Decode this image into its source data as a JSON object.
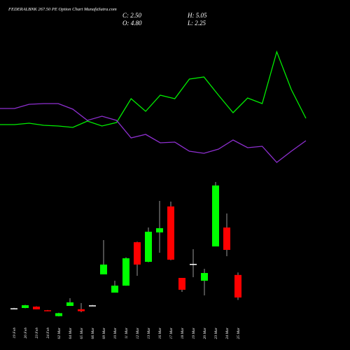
{
  "chart_data": [
    {
      "type": "candlestick",
      "title": "FEDERALBNK 267.50 PE Option Chart MunafaSutra.com",
      "stats": [
        "C: 2.50",
        "H: 5.05",
        "O: 4.80",
        "L: 2.25"
      ],
      "categories": [
        "19 Feb",
        "20 Feb",
        "23 Feb",
        "24 Feb",
        "02 Mar",
        "04 Mar",
        "05 Mar",
        "06 Mar",
        "09 Mar",
        "10 Mar",
        "11 Mar",
        "12 Mar",
        "13 Mar",
        "16 Mar",
        "17 Mar",
        "18 Mar",
        "19 Mar",
        "20 Mar",
        "23 Mar",
        "24 Mar",
        "25 Mar"
      ],
      "open": [
        1.4,
        1.43,
        1.57,
        1.2,
        0.6,
        1.64,
        1.3,
        1.7,
        4.86,
        3.0,
        3.71,
        8.14,
        6.14,
        9.14,
        11.79,
        4.5,
        5.93,
        4.21,
        7.71,
        9.64,
        4.8
      ],
      "high": [
        1.45,
        1.75,
        1.6,
        1.22,
        0.95,
        2.43,
        1.93,
        1.75,
        8.36,
        4.21,
        6.6,
        8.2,
        9.64,
        12.36,
        12.29,
        4.5,
        7.43,
        5.43,
        14.29,
        11.07,
        5.05
      ],
      "low": [
        1.4,
        1.4,
        1.29,
        1.1,
        0.57,
        1.64,
        1.0,
        1.7,
        4.86,
        3.0,
        3.7,
        4.71,
        6.1,
        7.07,
        6.3,
        3.07,
        4.57,
        2.71,
        7.71,
        6.71,
        2.25
      ],
      "close": [
        1.4,
        1.71,
        1.29,
        1.1,
        0.9,
        2.0,
        1.1,
        1.7,
        5.86,
        3.71,
        6.5,
        5.86,
        9.21,
        9.57,
        6.36,
        3.29,
        5.93,
        5.0,
        13.93,
        7.36,
        2.5
      ],
      "up_color": "#00ff00",
      "down_color": "#ff0000",
      "flat_color": "#ffffff",
      "ylim": [
        0,
        15
      ]
    },
    {
      "type": "line",
      "x": [
        0,
        1,
        2,
        3,
        4,
        5,
        6,
        7,
        8,
        9,
        10,
        11,
        12,
        13,
        14,
        15,
        16,
        17,
        18,
        19,
        20,
        21
      ],
      "xlim": [
        0,
        21
      ],
      "ylim": [
        0,
        100
      ],
      "series": [
        {
          "color": "#00ee00",
          "values": [
            36,
            36,
            37,
            35.5,
            35,
            34,
            38.5,
            35,
            37.5,
            54.5,
            45.5,
            57,
            54.5,
            68.5,
            70,
            57,
            44.5,
            55,
            51,
            88,
            61,
            40.5
          ]
        },
        {
          "color": "#8e2fd0",
          "values": [
            47.5,
            47.5,
            50.5,
            51,
            51,
            47,
            39,
            42,
            39,
            26.5,
            29,
            23,
            23.5,
            17,
            15.5,
            18.5,
            25,
            19.5,
            20.5,
            9,
            17,
            24.5
          ]
        }
      ]
    }
  ]
}
